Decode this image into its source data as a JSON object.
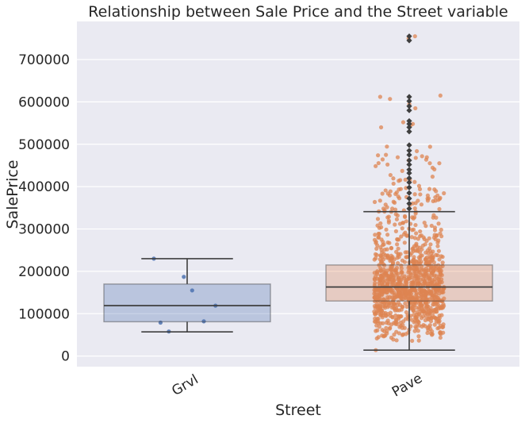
{
  "chart_data": {
    "type": "box",
    "title": "Relationship between Sale Price and the Street variable",
    "xlabel": "Street",
    "ylabel": "SalePrice",
    "categories": [
      "Grvl",
      "Pave"
    ],
    "ylim": [
      -25000,
      790000
    ],
    "yticks": [
      0,
      100000,
      200000,
      300000,
      400000,
      500000,
      600000,
      700000
    ],
    "grid": true,
    "colors": {
      "Grvl": "#4c72b0",
      "Pave": "#dd8452",
      "background": "#eaeaf2",
      "grid": "#ffffff",
      "line": "#3f3f3f"
    },
    "boxes": [
      {
        "category": "Grvl",
        "whisker_low": 57000,
        "q1": 81000,
        "median": 119000,
        "q3": 170000,
        "whisker_high": 230000,
        "outliers": []
      },
      {
        "category": "Pave",
        "whisker_low": 14000,
        "q1": 130000,
        "median": 163000,
        "q3": 215000,
        "whisker_high": 341000,
        "outliers": [
          348000,
          360000,
          372000,
          385000,
          398000,
          410000,
          420000,
          432000,
          440000,
          452000,
          462000,
          475000,
          485000,
          498000,
          530000,
          540000,
          548000,
          555000,
          580000,
          590000,
          602000,
          612000,
          745000,
          755000
        ]
      }
    ],
    "strip_points": {
      "Grvl": [
        {
          "x": -0.2,
          "y": 230000
        },
        {
          "x": -0.02,
          "y": 187000
        },
        {
          "x": 0.03,
          "y": 155000
        },
        {
          "x": 0.17,
          "y": 119000
        },
        {
          "x": 0.1,
          "y": 82000
        },
        {
          "x": -0.16,
          "y": 79000
        },
        {
          "x": -0.11,
          "y": 58000
        }
      ]
    }
  }
}
